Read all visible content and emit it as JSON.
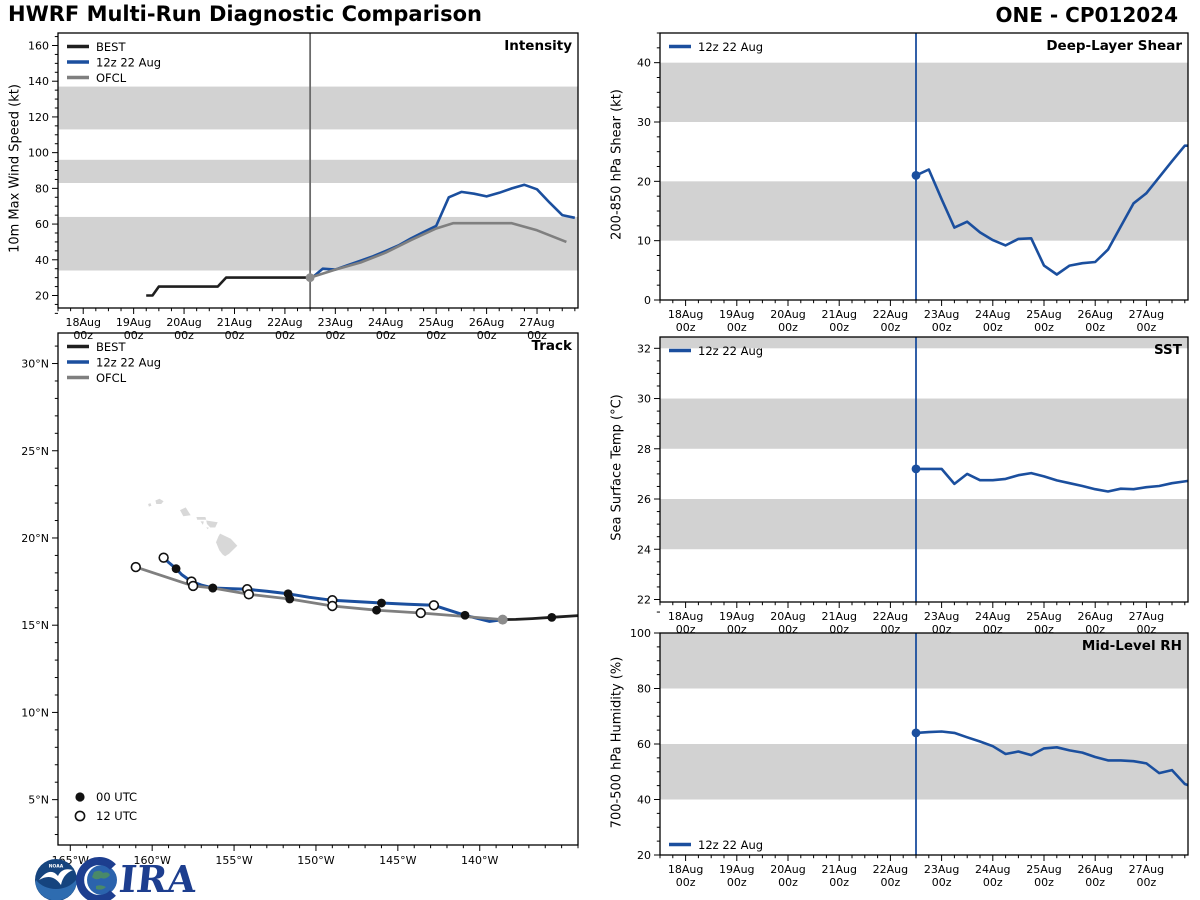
{
  "header": {
    "title": "HWRF Multi-Run Diagnostic Comparison",
    "storm_id": "ONE - CP012024"
  },
  "colors": {
    "forecast": "#1b4f9e",
    "best": "#1f1f1f",
    "ofcl": "#7f7f7f",
    "band": "#d2d2d2",
    "land": "#d8d8d8",
    "vline_gray": "#6b6b6b",
    "start_dot": "#8c8c8c",
    "frame": "#000000"
  },
  "logos": {
    "noaa_label": "NOAA",
    "cira_label": "CIRA"
  },
  "time_axis": {
    "xmin_hour": -12,
    "xmax_hour": 235.5,
    "vline_hour": 108,
    "tick_hours": [
      0,
      24,
      48,
      72,
      96,
      120,
      144,
      168,
      192,
      216
    ],
    "tick_labels": [
      "18Aug",
      "19Aug",
      "20Aug",
      "21Aug",
      "22Aug",
      "23Aug",
      "24Aug",
      "25Aug",
      "26Aug",
      "27Aug"
    ],
    "tick_sub_label": "00z",
    "minor_step_hours": 6
  },
  "chart_data": [
    {
      "id": "intensity",
      "type": "line",
      "title": "Intensity",
      "ylabel": "10m Max Wind Speed (kt)",
      "ylim": [
        13,
        167
      ],
      "yticks": [
        20,
        40,
        60,
        80,
        100,
        120,
        140,
        160
      ],
      "y_minor_step": 5,
      "bands": [
        [
          34,
          64
        ],
        [
          83,
          96
        ],
        [
          113,
          137
        ]
      ],
      "vline_color_key": "vline_gray",
      "legend_pos": "top-left",
      "series": [
        {
          "name": "BEST",
          "color_key": "best",
          "width": 2.6,
          "points": [
            [
              30,
              20
            ],
            [
              33,
              20
            ],
            [
              36,
              25
            ],
            [
              64,
              25
            ],
            [
              68,
              30
            ],
            [
              108,
              30
            ]
          ]
        },
        {
          "name": "12z 22 Aug",
          "color_key": "forecast",
          "width": 2.6,
          "start_hour": 108,
          "step_hours": 6,
          "values": [
            29,
            35,
            34.5,
            37,
            39.5,
            42,
            45,
            48,
            52,
            55.5,
            59,
            75,
            78,
            77,
            75.5,
            77.5,
            80,
            82,
            79.5,
            72,
            65,
            63.5
          ]
        },
        {
          "name": "OFCL",
          "color_key": "ofcl",
          "width": 2.6,
          "points": [
            [
              108,
              30
            ],
            [
              120,
              34.5
            ],
            [
              132,
              38.5
            ],
            [
              144,
              44
            ],
            [
              156,
              51
            ],
            [
              168,
              57.5
            ],
            [
              176,
              60.5
            ],
            [
              204,
              60.5
            ],
            [
              216,
              56.5
            ],
            [
              230,
              50
            ]
          ]
        }
      ],
      "start_marker": {
        "hour": 108,
        "value": 30,
        "color_key": "start_dot"
      }
    },
    {
      "id": "track",
      "type": "map",
      "title": "Track",
      "lon_lim": [
        165.75,
        134.0
      ],
      "lat_lim": [
        2.4,
        31.75
      ],
      "lon_ticks": [
        165,
        160,
        155,
        150,
        145,
        140
      ],
      "lat_ticks": [
        5,
        10,
        15,
        20,
        25,
        30
      ],
      "lon_suffix": "°W",
      "lat_suffix": "°N",
      "islands": [
        [
          [
            160.25,
            21.95
          ],
          [
            160.1,
            22.0
          ],
          [
            160.05,
            21.85
          ],
          [
            160.2,
            21.8
          ]
        ],
        [
          [
            159.8,
            22.15
          ],
          [
            159.55,
            22.25
          ],
          [
            159.3,
            22.1
          ],
          [
            159.45,
            21.95
          ],
          [
            159.75,
            21.95
          ]
        ],
        [
          [
            158.3,
            21.6
          ],
          [
            157.95,
            21.75
          ],
          [
            157.65,
            21.3
          ],
          [
            158.1,
            21.25
          ]
        ],
        [
          [
            157.3,
            21.2
          ],
          [
            156.75,
            21.2
          ],
          [
            156.7,
            21.05
          ],
          [
            157.25,
            21.05
          ]
        ],
        [
          [
            157.05,
            20.95
          ],
          [
            156.85,
            20.95
          ],
          [
            156.9,
            20.75
          ]
        ],
        [
          [
            156.7,
            21.0
          ],
          [
            156.0,
            20.9
          ],
          [
            156.15,
            20.6
          ],
          [
            156.45,
            20.6
          ],
          [
            156.65,
            20.8
          ]
        ],
        [
          [
            156.7,
            20.6
          ],
          [
            156.55,
            20.6
          ],
          [
            156.6,
            20.5
          ]
        ],
        [
          [
            155.85,
            20.25
          ],
          [
            155.2,
            19.95
          ],
          [
            154.8,
            19.55
          ],
          [
            155.3,
            19.1
          ],
          [
            155.55,
            18.95
          ],
          [
            155.7,
            19.05
          ],
          [
            155.9,
            19.3
          ],
          [
            156.1,
            19.75
          ],
          [
            155.95,
            20.1
          ]
        ]
      ],
      "series": [
        {
          "name": "BEST",
          "color_key": "best",
          "width": 2.8,
          "points": [
            [
              134.0,
              15.55
            ],
            [
              135.6,
              15.45
            ],
            [
              136.8,
              15.38
            ],
            [
              137.8,
              15.33
            ],
            [
              138.6,
              15.32
            ]
          ],
          "markers": [
            {
              "lon": 135.6,
              "lat": 15.45,
              "type": "filled"
            }
          ]
        },
        {
          "name": "12z 22 Aug",
          "color_key": "forecast",
          "width": 3,
          "points": [
            [
              138.6,
              15.32
            ],
            [
              139.4,
              15.22
            ],
            [
              140.9,
              15.57
            ],
            [
              142.8,
              16.14
            ],
            [
              144.4,
              16.2
            ],
            [
              146.0,
              16.27
            ],
            [
              147.5,
              16.35
            ],
            [
              149.0,
              16.43
            ],
            [
              150.4,
              16.6
            ],
            [
              151.7,
              16.8
            ],
            [
              153.0,
              16.95
            ],
            [
              154.2,
              17.06
            ],
            [
              155.3,
              17.1
            ],
            [
              156.3,
              17.13
            ],
            [
              157.0,
              17.3
            ],
            [
              157.6,
              17.5
            ],
            [
              158.2,
              17.9
            ],
            [
              158.54,
              18.24
            ],
            [
              159.0,
              18.6
            ],
            [
              159.3,
              18.87
            ]
          ],
          "markers": [
            {
              "lon": 140.9,
              "lat": 15.57,
              "type": "filled"
            },
            {
              "lon": 142.8,
              "lat": 16.14,
              "type": "open"
            },
            {
              "lon": 146.0,
              "lat": 16.27,
              "type": "filled"
            },
            {
              "lon": 149.0,
              "lat": 16.43,
              "type": "open"
            },
            {
              "lon": 151.7,
              "lat": 16.8,
              "type": "filled"
            },
            {
              "lon": 154.2,
              "lat": 17.06,
              "type": "open"
            },
            {
              "lon": 156.3,
              "lat": 17.13,
              "type": "filled"
            },
            {
              "lon": 157.6,
              "lat": 17.5,
              "type": "open"
            },
            {
              "lon": 158.54,
              "lat": 18.24,
              "type": "filled"
            },
            {
              "lon": 159.3,
              "lat": 18.87,
              "type": "open"
            }
          ]
        },
        {
          "name": "OFCL",
          "color_key": "ofcl",
          "width": 2.8,
          "points": [
            [
              138.6,
              15.32
            ],
            [
              140.9,
              15.5
            ],
            [
              143.6,
              15.7
            ],
            [
              146.3,
              15.86
            ],
            [
              149.0,
              16.1
            ],
            [
              151.6,
              16.5
            ],
            [
              154.1,
              16.77
            ],
            [
              156.3,
              17.13
            ],
            [
              157.5,
              17.25
            ],
            [
              161.0,
              18.33
            ]
          ],
          "markers": [
            {
              "lon": 143.6,
              "lat": 15.7,
              "type": "open"
            },
            {
              "lon": 146.3,
              "lat": 15.86,
              "type": "filled"
            },
            {
              "lon": 149.0,
              "lat": 16.1,
              "type": "open"
            },
            {
              "lon": 151.6,
              "lat": 16.5,
              "type": "filled"
            },
            {
              "lon": 154.1,
              "lat": 16.77,
              "type": "open"
            },
            {
              "lon": 156.3,
              "lat": 17.13,
              "type": "filled"
            },
            {
              "lon": 157.5,
              "lat": 17.25,
              "type": "open"
            },
            {
              "lon": 161.0,
              "lat": 18.33,
              "type": "open"
            }
          ]
        }
      ],
      "start_marker": {
        "lon": 138.6,
        "lat": 15.32,
        "color_key": "start_dot"
      },
      "legend_pos": "top-left",
      "marker_legend": [
        {
          "type": "filled",
          "label": "00 UTC"
        },
        {
          "type": "open",
          "label": "12 UTC"
        }
      ]
    },
    {
      "id": "shear",
      "type": "line",
      "title": "Deep-Layer Shear",
      "ylabel": "200-850 hPa Shear (kt)",
      "ylim": [
        0,
        45
      ],
      "yticks": [
        0,
        10,
        20,
        30,
        40
      ],
      "y_minor_step": 2.5,
      "bands": [
        [
          10,
          20
        ],
        [
          30,
          40
        ]
      ],
      "vline_color_key": "forecast",
      "legend_pos": "top-left",
      "series": [
        {
          "name": "12z 22 Aug",
          "color_key": "forecast",
          "width": 2.6,
          "start_hour": 108,
          "step_hours": 6,
          "values": [
            21,
            22,
            17,
            12.2,
            13.2,
            11.4,
            10.1,
            9.2,
            10.3,
            10.4,
            5.8,
            4.3,
            5.8,
            6.2,
            6.4,
            8.5,
            12.4,
            16.3,
            18,
            20.7,
            23.4,
            26
          ],
          "tail": [
            [
              235.5,
              26
            ]
          ]
        }
      ],
      "start_marker": {
        "hour": 108,
        "value": 21,
        "color_key": "forecast"
      }
    },
    {
      "id": "sst",
      "type": "line",
      "title": "SST",
      "ylabel": "Sea Surface Temp (°C)",
      "ylim": [
        21.9,
        32.45
      ],
      "yticks": [
        22,
        24,
        26,
        28,
        30,
        32
      ],
      "y_minor_step": 0.5,
      "bands": [
        [
          24,
          26
        ],
        [
          28,
          30
        ],
        [
          32,
          32.45
        ]
      ],
      "vline_color_key": "forecast",
      "legend_pos": "top-left",
      "series": [
        {
          "name": "12z 22 Aug",
          "color_key": "forecast",
          "width": 2.6,
          "start_hour": 108,
          "step_hours": 6,
          "values": [
            27.2,
            27.2,
            27.2,
            26.6,
            27.0,
            26.75,
            26.75,
            26.8,
            26.95,
            27.03,
            26.9,
            26.74,
            26.63,
            26.52,
            26.39,
            26.3,
            26.41,
            26.39,
            26.47,
            26.52,
            26.63,
            26.7
          ],
          "tail": [
            [
              235.5,
              26.72
            ]
          ]
        }
      ],
      "start_marker": {
        "hour": 108,
        "value": 27.2,
        "color_key": "forecast"
      }
    },
    {
      "id": "rh",
      "type": "line",
      "title": "Mid-Level RH",
      "ylabel": "700-500 hPa Humidity (%)",
      "ylim": [
        20,
        100
      ],
      "yticks": [
        20,
        40,
        60,
        80,
        100
      ],
      "y_minor_step": 5,
      "bands": [
        [
          40,
          60
        ],
        [
          80,
          100
        ]
      ],
      "vline_color_key": "forecast",
      "legend_pos": "bottom-left",
      "series": [
        {
          "name": "12z 22 Aug",
          "color_key": "forecast",
          "width": 2.6,
          "start_hour": 108,
          "step_hours": 6,
          "values": [
            64,
            64.3,
            64.5,
            64,
            62.4,
            60.9,
            59.2,
            56.4,
            57.3,
            56,
            58.4,
            58.8,
            57.7,
            56.9,
            55.3,
            54.1,
            54.1,
            53.8,
            53,
            49.5,
            50.6,
            45.6
          ],
          "tail": [
            [
              235.5,
              45.2
            ]
          ]
        }
      ],
      "start_marker": {
        "hour": 108,
        "value": 64,
        "color_key": "forecast"
      }
    }
  ]
}
